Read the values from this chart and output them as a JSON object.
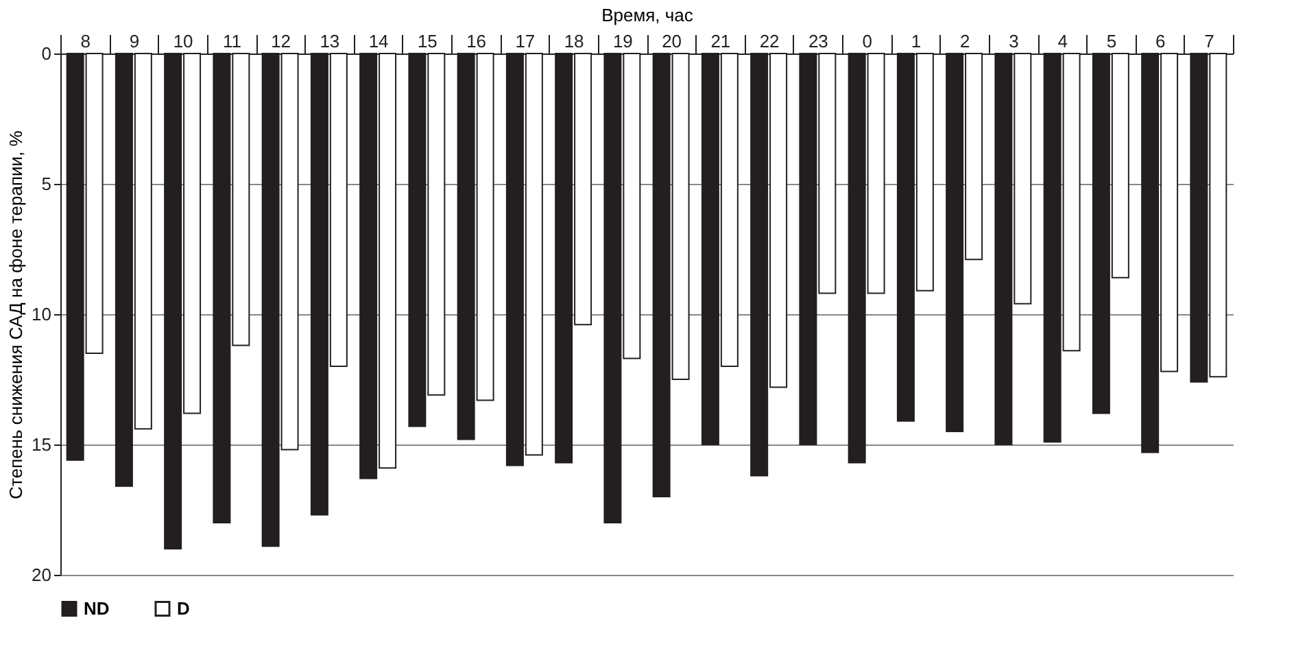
{
  "chart_data": {
    "type": "bar",
    "xlabel": "Время, час",
    "ylabel": "Степень снижения САД на фоне терапии, %",
    "categories": [
      "8",
      "9",
      "10",
      "11",
      "12",
      "13",
      "14",
      "15",
      "16",
      "17",
      "18",
      "19",
      "20",
      "21",
      "22",
      "23",
      "0",
      "1",
      "2",
      "3",
      "4",
      "5",
      "6",
      "7"
    ],
    "series": [
      {
        "name": "ND",
        "color": "#231f20",
        "values": [
          15.6,
          16.6,
          19.0,
          18.0,
          18.9,
          17.7,
          16.3,
          14.3,
          14.8,
          15.8,
          15.7,
          18.0,
          17.0,
          15.0,
          16.2,
          15.0,
          15.7,
          14.1,
          14.5,
          15.0,
          14.9,
          13.8,
          15.3,
          12.6
        ]
      },
      {
        "name": "D",
        "color": "#ffffff",
        "values": [
          11.5,
          14.4,
          13.8,
          11.2,
          15.2,
          12.0,
          15.9,
          13.1,
          13.3,
          15.4,
          10.4,
          11.7,
          12.5,
          12.0,
          12.8,
          9.2,
          9.2,
          9.1,
          7.9,
          9.6,
          11.4,
          8.6,
          12.2,
          12.4
        ]
      }
    ],
    "ylim": [
      20,
      0
    ],
    "yticks": [
      0,
      5,
      10,
      15,
      20
    ],
    "grid": "y",
    "legend": "bottom"
  }
}
